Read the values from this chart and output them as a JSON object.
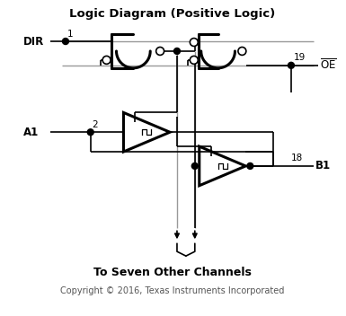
{
  "title": "Logic Diagram (Positive Logic)",
  "subtitle": "To Seven Other Channels",
  "copyright": "Copyright © 2016, Texas Instruments Incorporated",
  "dir_label": "DIR",
  "a1_label": "A1",
  "b1_label": "B1",
  "oe_label": "OE",
  "pin1": "1",
  "pin2": "2",
  "pin18": "18",
  "pin19": "19",
  "black": "#000000",
  "gray": "#999999",
  "white": "#ffffff",
  "lw_thick": 2.2,
  "lw_thin": 1.2,
  "lw_gray": 1.0,
  "dot_r": 3.5
}
